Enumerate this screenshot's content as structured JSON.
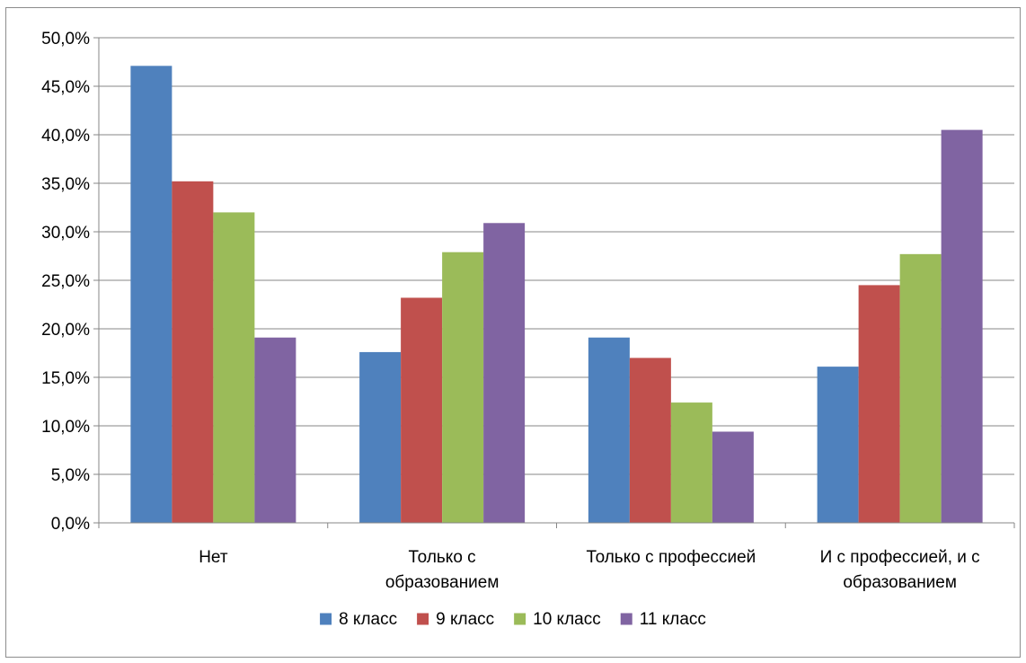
{
  "chart_data": {
    "type": "bar",
    "title": "",
    "xlabel": "",
    "ylabel": "",
    "categories": [
      [
        "Нет"
      ],
      [
        "Только с",
        "образованием"
      ],
      [
        "Только с профессией"
      ],
      [
        "И с профессией, и с",
        "образованием"
      ]
    ],
    "series": [
      {
        "name": "8 класс",
        "color": "#4f81bd",
        "values": [
          47.1,
          17.6,
          19.1,
          16.1
        ]
      },
      {
        "name": "9 класс",
        "color": "#c0504d",
        "values": [
          35.2,
          23.2,
          17.0,
          24.5
        ]
      },
      {
        "name": "10 класс",
        "color": "#9bbb59",
        "values": [
          32.0,
          27.9,
          12.4,
          27.7
        ]
      },
      {
        "name": "11 класс",
        "color": "#8064a2",
        "values": [
          19.1,
          30.9,
          9.4,
          40.5
        ]
      }
    ],
    "ylim": [
      0,
      50
    ],
    "yticks": [
      0,
      5,
      10,
      15,
      20,
      25,
      30,
      35,
      40,
      45,
      50
    ],
    "ytick_labels": [
      "0,0%",
      "5,0%",
      "10,0%",
      "15,0%",
      "20,0%",
      "25,0%",
      "30,0%",
      "35,0%",
      "40,0%",
      "45,0%",
      "50,0%"
    ],
    "grid": true,
    "legend_position": "bottom"
  }
}
